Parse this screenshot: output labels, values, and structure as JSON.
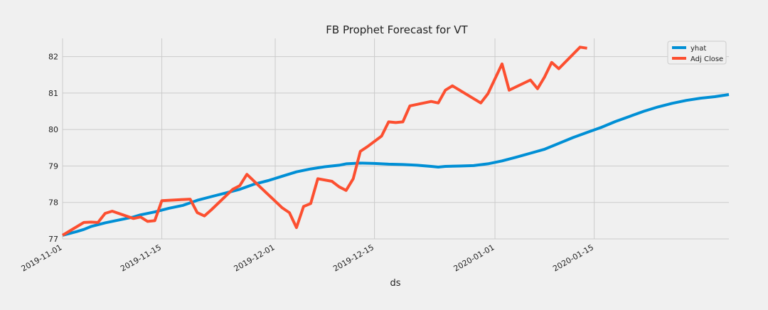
{
  "chart_data": {
    "type": "line",
    "title": "FB Prophet Forecast for VT",
    "xlabel": "ds",
    "ylabel": "",
    "x_range": [
      "2019-11-01",
      "2020-01-30"
    ],
    "ylim": [
      77.0,
      82.5
    ],
    "x_ticks": [
      "2019-11-01",
      "2019-11-15",
      "2019-12-01",
      "2019-12-15",
      "2020-01-01",
      "2020-01-15"
    ],
    "y_ticks": [
      77,
      78,
      79,
      80,
      81,
      82
    ],
    "grid": true,
    "legend_position": "top-right",
    "background_color": "#f0f0f0",
    "grid_color": "#cbcbcb",
    "series": [
      {
        "name": "yhat",
        "color": "#008fd5",
        "points": [
          [
            "2019-11-01",
            77.1
          ],
          [
            "2019-11-03",
            77.2
          ],
          [
            "2019-11-04",
            77.26
          ],
          [
            "2019-11-05",
            77.34
          ],
          [
            "2019-11-07",
            77.44
          ],
          [
            "2019-11-09",
            77.52
          ],
          [
            "2019-11-11",
            77.6
          ],
          [
            "2019-11-12",
            77.66
          ],
          [
            "2019-11-14",
            77.74
          ],
          [
            "2019-11-16",
            77.84
          ],
          [
            "2019-11-18",
            77.92
          ],
          [
            "2019-11-20",
            78.06
          ],
          [
            "2019-11-22",
            78.16
          ],
          [
            "2019-11-24",
            78.26
          ],
          [
            "2019-11-26",
            78.36
          ],
          [
            "2019-11-28",
            78.5
          ],
          [
            "2019-11-30",
            78.6
          ],
          [
            "2019-12-02",
            78.72
          ],
          [
            "2019-12-04",
            78.84
          ],
          [
            "2019-12-06",
            78.92
          ],
          [
            "2019-12-08",
            78.98
          ],
          [
            "2019-12-10",
            79.02
          ],
          [
            "2019-12-11",
            79.06
          ],
          [
            "2019-12-13",
            79.08
          ],
          [
            "2019-12-15",
            79.07
          ],
          [
            "2019-12-17",
            79.05
          ],
          [
            "2019-12-19",
            79.04
          ],
          [
            "2019-12-21",
            79.02
          ],
          [
            "2019-12-23",
            78.99
          ],
          [
            "2019-12-24",
            78.97
          ],
          [
            "2019-12-25",
            78.99
          ],
          [
            "2019-12-27",
            79.0
          ],
          [
            "2019-12-29",
            79.01
          ],
          [
            "2019-12-31",
            79.06
          ],
          [
            "2020-01-02",
            79.14
          ],
          [
            "2020-01-04",
            79.24
          ],
          [
            "2020-01-06",
            79.35
          ],
          [
            "2020-01-08",
            79.46
          ],
          [
            "2020-01-10",
            79.62
          ],
          [
            "2020-01-12",
            79.78
          ],
          [
            "2020-01-14",
            79.92
          ],
          [
            "2020-01-16",
            80.06
          ],
          [
            "2020-01-18",
            80.22
          ],
          [
            "2020-01-20",
            80.36
          ],
          [
            "2020-01-22",
            80.5
          ],
          [
            "2020-01-24",
            80.62
          ],
          [
            "2020-01-26",
            80.72
          ],
          [
            "2020-01-28",
            80.8
          ],
          [
            "2020-01-30",
            80.86
          ],
          [
            "2020-02-01",
            80.9
          ],
          [
            "2020-02-03",
            80.96
          ]
        ]
      },
      {
        "name": "Adj Close",
        "color": "#fc4f30",
        "points": [
          [
            "2019-11-01",
            77.1
          ],
          [
            "2019-11-04",
            77.45
          ],
          [
            "2019-11-05",
            77.46
          ],
          [
            "2019-11-06",
            77.45
          ],
          [
            "2019-11-07",
            77.7
          ],
          [
            "2019-11-08",
            77.76
          ],
          [
            "2019-11-11",
            77.56
          ],
          [
            "2019-11-12",
            77.6
          ],
          [
            "2019-11-13",
            77.48
          ],
          [
            "2019-11-14",
            77.5
          ],
          [
            "2019-11-15",
            78.05
          ],
          [
            "2019-11-18",
            78.08
          ],
          [
            "2019-11-19",
            78.09
          ],
          [
            "2019-11-20",
            77.72
          ],
          [
            "2019-11-21",
            77.63
          ],
          [
            "2019-11-22",
            77.8
          ],
          [
            "2019-11-25",
            78.36
          ],
          [
            "2019-11-26",
            78.46
          ],
          [
            "2019-11-27",
            78.77
          ],
          [
            "2019-11-29",
            78.4
          ],
          [
            "2019-12-02",
            77.85
          ],
          [
            "2019-12-03",
            77.72
          ],
          [
            "2019-12-04",
            77.31
          ],
          [
            "2019-12-05",
            77.89
          ],
          [
            "2019-12-06",
            77.97
          ],
          [
            "2019-12-07",
            78.65
          ],
          [
            "2019-12-09",
            78.58
          ],
          [
            "2019-12-10",
            78.43
          ],
          [
            "2019-12-11",
            78.33
          ],
          [
            "2019-12-12",
            78.65
          ],
          [
            "2019-12-13",
            79.4
          ],
          [
            "2019-12-14",
            79.53
          ],
          [
            "2019-12-16",
            79.82
          ],
          [
            "2019-12-17",
            80.21
          ],
          [
            "2019-12-18",
            80.19
          ],
          [
            "2019-12-19",
            80.21
          ],
          [
            "2019-12-20",
            80.65
          ],
          [
            "2019-12-23",
            80.77
          ],
          [
            "2019-12-24",
            80.73
          ],
          [
            "2019-12-25",
            81.08
          ],
          [
            "2019-12-26",
            81.2
          ],
          [
            "2019-12-30",
            80.73
          ],
          [
            "2019-12-31",
            80.98
          ],
          [
            "2020-01-02",
            81.8
          ],
          [
            "2020-01-03",
            81.08
          ],
          [
            "2020-01-06",
            81.36
          ],
          [
            "2020-01-07",
            81.12
          ],
          [
            "2020-01-08",
            81.44
          ],
          [
            "2020-01-09",
            81.84
          ],
          [
            "2020-01-10",
            81.67
          ],
          [
            "2020-01-13",
            82.26
          ],
          [
            "2020-01-14",
            82.23
          ]
        ]
      }
    ]
  }
}
